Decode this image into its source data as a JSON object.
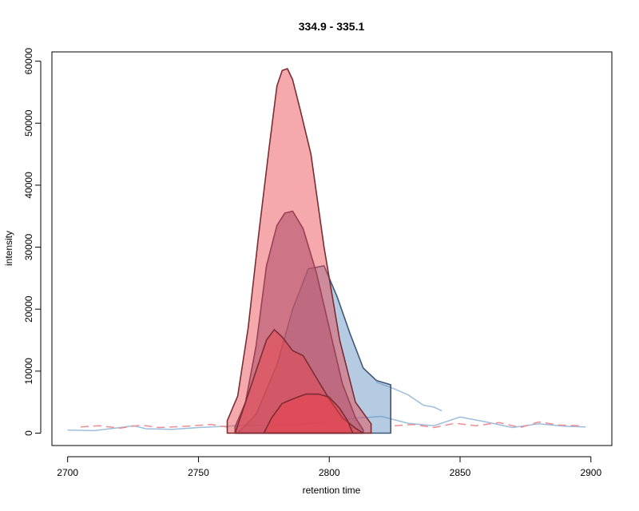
{
  "chart_data": {
    "type": "area",
    "title": "334.9 - 335.1",
    "xlabel": "retention time",
    "ylabel": "intensity",
    "xlim": [
      2694,
      2908
    ],
    "ylim": [
      -2000,
      61500
    ],
    "x_ticks": [
      2700,
      2750,
      2800,
      2850,
      2900
    ],
    "y_ticks": [
      0,
      10000,
      20000,
      30000,
      40000,
      50000,
      60000
    ],
    "grid": false,
    "legend": "none",
    "colors": {
      "red_fill": "rgba(235,65,72,0.45)",
      "red_stroke": "#7a2d32",
      "purple_fill": "rgba(140,110,150,0.65)",
      "purple_stroke": "#5a3f5e",
      "blue_fill": "rgba(90,140,190,0.45)",
      "blue_stroke": "#3e5a78",
      "blue_line": "#9dbedc",
      "red_line": "#ee8c92"
    },
    "peaks": [
      {
        "style": "blue",
        "x": [
          2765,
          2772,
          2780,
          2786,
          2792,
          2798,
          2803,
          2808,
          2813,
          2818,
          2823.5
        ],
        "y": [
          0,
          3000,
          11000,
          20000,
          26500,
          27000,
          22000,
          16000,
          10500,
          8500,
          7800
        ]
      },
      {
        "style": "purple",
        "x": [
          2764,
          2768,
          2772,
          2776,
          2780,
          2783,
          2786,
          2790,
          2795,
          2800,
          2805,
          2810,
          2813
        ],
        "y": [
          1000,
          5000,
          14000,
          27000,
          33500,
          35500,
          35800,
          33000,
          26000,
          17000,
          8000,
          2500,
          500
        ]
      },
      {
        "style": "red",
        "x": [
          2761,
          2765,
          2769,
          2773,
          2777,
          2780,
          2782,
          2784,
          2786,
          2789,
          2793,
          2798,
          2804,
          2810,
          2816
        ],
        "y": [
          2000,
          6000,
          17000,
          32000,
          46000,
          56000,
          58500,
          58800,
          57000,
          52000,
          45000,
          30000,
          15000,
          5000,
          1500
        ]
      },
      {
        "style": "red",
        "x": [
          2764,
          2768,
          2772,
          2776,
          2779,
          2782,
          2786,
          2790,
          2795,
          2800,
          2805,
          2810,
          2813
        ],
        "y": [
          0,
          5000,
          10000,
          15000,
          16700,
          15500,
          13300,
          12500,
          9000,
          5500,
          2500,
          800,
          0
        ]
      },
      {
        "style": "red",
        "x": [
          2775,
          2778,
          2782,
          2786,
          2791,
          2796,
          2800,
          2804,
          2807,
          2809
        ],
        "y": [
          0,
          2500,
          4800,
          5500,
          6300,
          6300,
          5800,
          4000,
          2000,
          0
        ]
      }
    ],
    "background_lines": [
      {
        "style": "blue",
        "x": [
          2700,
          2710,
          2720,
          2725,
          2730,
          2740,
          2750,
          2760,
          2770,
          2780,
          2790,
          2800,
          2810,
          2820,
          2830,
          2840,
          2850,
          2860,
          2870,
          2880,
          2890,
          2898
        ],
        "y": [
          500,
          400,
          900,
          1200,
          700,
          600,
          900,
          1100,
          1300,
          1200,
          1500,
          1800,
          2400,
          2700,
          1600,
          1200,
          2600,
          1800,
          900,
          1500,
          1100,
          1000
        ]
      },
      {
        "style": "blue",
        "x": [
          2818,
          2824,
          2830,
          2836,
          2840,
          2843
        ],
        "y": [
          8200,
          7300,
          6200,
          4500,
          4200,
          3600
        ]
      },
      {
        "style": "red",
        "x": [
          2705,
          2712,
          2720,
          2728,
          2735,
          2745,
          2755,
          2762
        ],
        "y": [
          1000,
          1200,
          800,
          1300,
          900,
          1100,
          1400,
          900
        ]
      },
      {
        "style": "red",
        "x": [
          2825,
          2832,
          2840,
          2848,
          2856,
          2865,
          2873,
          2880,
          2888,
          2896
        ],
        "y": [
          1200,
          1400,
          900,
          1600,
          1200,
          1700,
          900,
          1800,
          1300,
          1200
        ]
      }
    ]
  }
}
